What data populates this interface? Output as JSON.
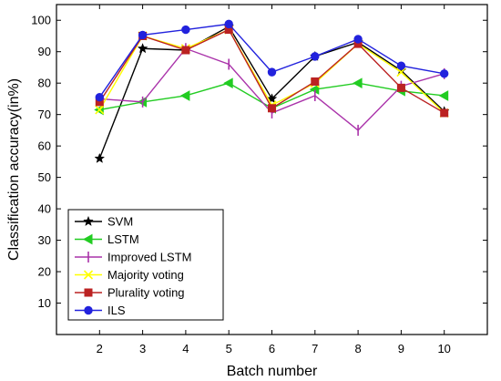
{
  "chart_data": {
    "type": "line",
    "title": "",
    "xlabel": "Batch number",
    "ylabel": "Classification accuracy(in%)",
    "x": [
      2,
      3,
      4,
      5,
      6,
      7,
      8,
      9,
      10
    ],
    "xlim": [
      1,
      11
    ],
    "ylim": [
      0,
      105
    ],
    "xticks": [
      2,
      3,
      4,
      5,
      6,
      7,
      8,
      9,
      10
    ],
    "yticks": [
      10,
      20,
      30,
      40,
      50,
      60,
      70,
      80,
      90,
      100
    ],
    "grid": false,
    "legend_position": "bottom-left",
    "series": [
      {
        "name": "SVM",
        "color": "#000000",
        "marker": "star",
        "values": [
          56,
          91,
          90.5,
          98,
          75,
          88.5,
          93,
          84,
          71
        ]
      },
      {
        "name": "LSTM",
        "color": "#22cc22",
        "marker": "triangle-left",
        "values": [
          71.5,
          74,
          76,
          80,
          72,
          78,
          80,
          77.5,
          76
        ]
      },
      {
        "name": "Improved LSTM",
        "color": "#aa33aa",
        "marker": "vbar",
        "values": [
          75,
          74,
          91,
          86,
          70.5,
          76,
          65,
          79,
          83
        ]
      },
      {
        "name": "Majority voting",
        "color": "#ffff00",
        "marker": "x",
        "values": [
          71.5,
          95,
          91,
          97,
          73,
          80,
          92.5,
          83.5,
          70.5
        ]
      },
      {
        "name": "Plurality voting",
        "color": "#bb2222",
        "marker": "square",
        "values": [
          74,
          95,
          90.5,
          97,
          72,
          80.5,
          92.5,
          78.5,
          70.5
        ]
      },
      {
        "name": "ILS",
        "color": "#2222dd",
        "marker": "circle",
        "values": [
          75.5,
          95.3,
          97,
          98.8,
          83.5,
          88.5,
          94,
          85.5,
          83
        ]
      }
    ]
  }
}
